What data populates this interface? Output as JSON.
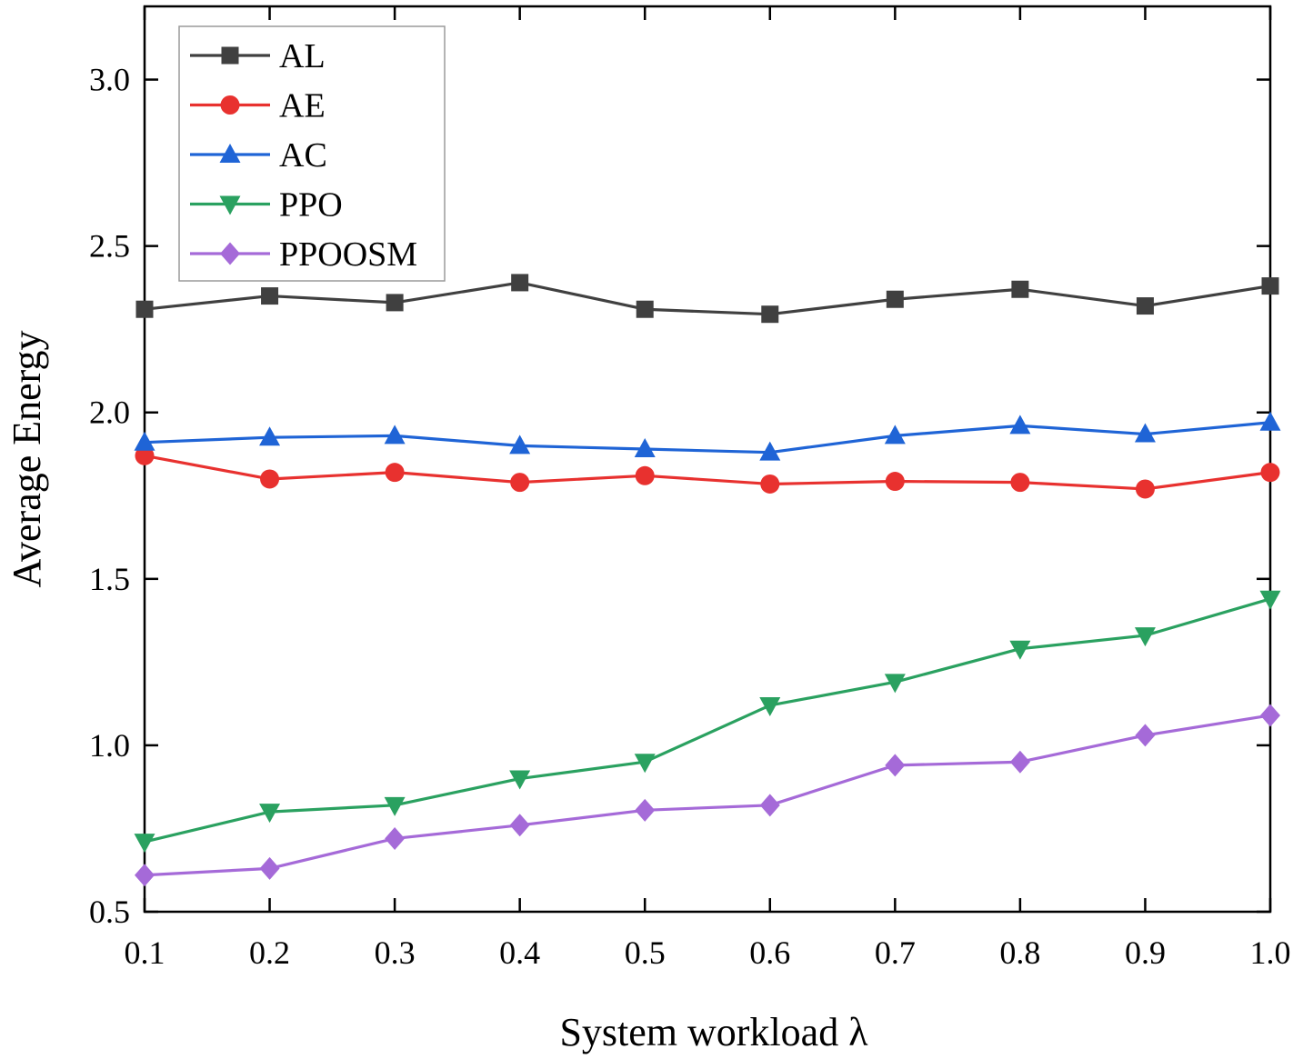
{
  "chart_data": {
    "type": "line",
    "title": "",
    "xlabel": "System workload λ",
    "ylabel": "Average Energy",
    "xlim": [
      0.1,
      1.0
    ],
    "ylim": [
      0.5,
      3.22
    ],
    "x": [
      0.1,
      0.2,
      0.3,
      0.4,
      0.5,
      0.6,
      0.7,
      0.8,
      0.9,
      1.0
    ],
    "x_tick_labels": [
      "0.1",
      "0.2",
      "0.3",
      "0.4",
      "0.5",
      "0.6",
      "0.7",
      "0.8",
      "0.9",
      "1.0"
    ],
    "y_ticks": [
      0.5,
      1.0,
      1.5,
      2.0,
      2.5,
      3.0
    ],
    "y_tick_labels": [
      "0.5",
      "1.0",
      "1.5",
      "2.0",
      "2.5",
      "3.0"
    ],
    "grid": false,
    "legend_position": "top-left",
    "series": [
      {
        "name": "AL",
        "color": "#404040",
        "marker": "square",
        "values": [
          2.31,
          2.35,
          2.33,
          2.39,
          2.31,
          2.295,
          2.34,
          2.37,
          2.32,
          2.38
        ]
      },
      {
        "name": "AE",
        "color": "#e8312f",
        "marker": "circle",
        "values": [
          1.87,
          1.8,
          1.82,
          1.79,
          1.81,
          1.785,
          1.793,
          1.79,
          1.77,
          1.82
        ]
      },
      {
        "name": "AC",
        "color": "#1f64d6",
        "marker": "triangle-up",
        "values": [
          1.91,
          1.925,
          1.93,
          1.9,
          1.89,
          1.88,
          1.93,
          1.96,
          1.935,
          1.97
        ]
      },
      {
        "name": "PPO",
        "color": "#2aa160",
        "marker": "triangle-down",
        "values": [
          0.71,
          0.8,
          0.82,
          0.9,
          0.95,
          1.12,
          1.19,
          1.29,
          1.33,
          1.44
        ]
      },
      {
        "name": "PPOOSM",
        "color": "#a56ad8",
        "marker": "diamond",
        "values": [
          0.61,
          0.63,
          0.72,
          0.76,
          0.805,
          0.82,
          0.94,
          0.95,
          1.03,
          1.09
        ]
      }
    ]
  }
}
